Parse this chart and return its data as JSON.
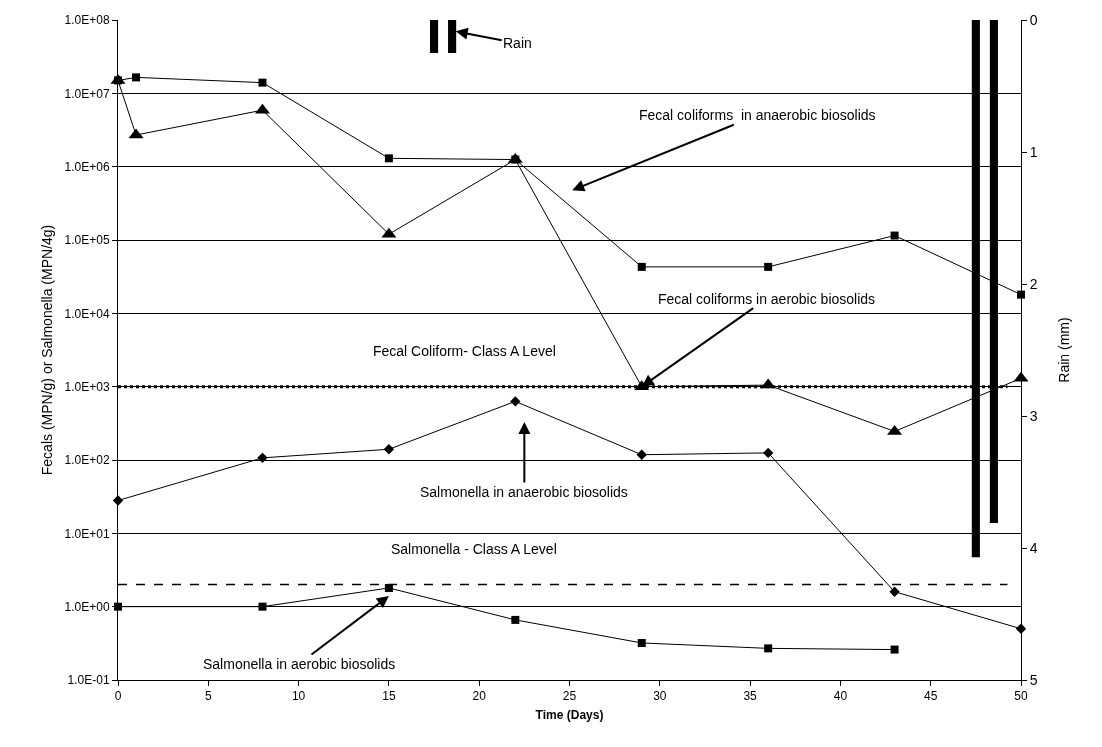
{
  "chart_data": {
    "type": "line",
    "xlabel": "Time (Days)",
    "ylabel": "Fecals (MPN/g) or Salmonella (MPN/4g)",
    "y2label": "Rain (mm)",
    "log": "y",
    "grid": "y",
    "xlim": [
      0,
      50
    ],
    "xticks": [
      0,
      5,
      10,
      15,
      20,
      25,
      30,
      35,
      40,
      45,
      50
    ],
    "ylim": [
      0.1,
      100000000
    ],
    "yticks": [
      {
        "value": 0.1,
        "label": "1.0E-01"
      },
      {
        "value": 1,
        "label": "1.0E+00"
      },
      {
        "value": 10,
        "label": "1.0E+01"
      },
      {
        "value": 100,
        "label": "1.0E+02"
      },
      {
        "value": 1000,
        "label": "1.0E+03"
      },
      {
        "value": 10000,
        "label": "1.0E+04"
      },
      {
        "value": 100000,
        "label": "1.0E+05"
      },
      {
        "value": 1000000,
        "label": "1.0E+06"
      },
      {
        "value": 10000000,
        "label": "1.0E+07"
      },
      {
        "value": 100000000,
        "label": "1.0E+08"
      }
    ],
    "y2lim": [
      5,
      0
    ],
    "y2ticks": [
      0,
      1,
      2,
      3,
      4,
      5
    ],
    "series": [
      {
        "marker": "square",
        "color": "#000000",
        "x": [
          0,
          1,
          8,
          15,
          22,
          29,
          36,
          43,
          50
        ],
        "values": [
          15000000,
          16500000,
          14000000,
          1300000,
          1250000,
          43000,
          43000,
          115000,
          18000
        ]
      },
      {
        "marker": "triangle",
        "color": "#000000",
        "x": [
          0,
          1,
          8,
          15,
          22,
          29,
          36,
          43,
          50
        ],
        "values": [
          15000000,
          2700000,
          5900000,
          120000,
          1250000,
          1000,
          1050,
          245,
          1300
        ]
      },
      {
        "marker": "diamond",
        "color": "#000000",
        "x": [
          0,
          8,
          15,
          22,
          29,
          36,
          43,
          50
        ],
        "values": [
          28,
          107,
          140,
          630,
          118,
          125,
          1.6,
          0.5
        ]
      },
      {
        "marker": "square",
        "color": "#000000",
        "x": [
          0,
          8,
          15,
          22,
          29,
          36,
          43
        ],
        "values": [
          1,
          1,
          1.8,
          0.66,
          0.32,
          0.27,
          0.26
        ]
      },
      {
        "type": "bar",
        "axis": "y2",
        "color": "#000000",
        "x": [
          17.5,
          18.5,
          47.5,
          48.5
        ],
        "values": [
          0.25,
          0.25,
          4.07,
          3.81
        ]
      }
    ],
    "ref_lines": [
      {
        "axis": "y",
        "value": 1000,
        "label": "Fecal Coliform- Class A Level",
        "line_style": "dotted",
        "color": "#000000"
      },
      {
        "axis": "y",
        "value": 2,
        "label": "Salmonella - Class A Level",
        "line_style": "dashed",
        "color": "#000000"
      }
    ],
    "annotations": [
      {
        "text": "Rain",
        "x": 18.7,
        "y": 70000000
      },
      "Fecal coliforms  in anaerobic biosolids",
      {
        "text": "Fecal coliforms in aerobic biosolids",
        "x": 29,
        "y": 1000
      },
      "Salmonella in anaerobic biosolids",
      {
        "text": "Salmonella in aerobic biosolids",
        "x": 15,
        "y": 1.4
      }
    ]
  }
}
